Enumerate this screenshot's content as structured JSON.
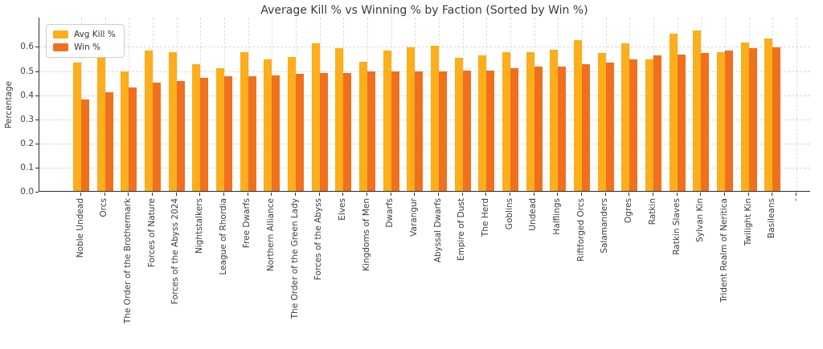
{
  "title": "Average Kill % vs Winning % by Faction (Sorted by Win %)",
  "ylabel": "Percentage",
  "yticks": [
    "0.0",
    "0.1",
    "0.2",
    "0.3",
    "0.4",
    "0.5",
    "0.6"
  ],
  "colors": {
    "avg_kill": "#FCAE1B",
    "win": "#F0701E"
  },
  "chart_data": {
    "type": "bar",
    "title": "Average Kill % vs Winning % by Faction (Sorted by Win %)",
    "xlabel": "",
    "ylabel": "Percentage",
    "ylim": [
      0,
      0.72
    ],
    "grid": true,
    "legend_position": "upper left",
    "categories": [
      "Noble Undead",
      "Orcs",
      "The Order of the Brothermark",
      "Forces of Nature",
      "Forces of the Abyss 2024",
      "Nightstalkers",
      "League of Rhordia",
      "Free Dwarfs",
      "Northern Alliance",
      "The Order of the Green Lady",
      "Forces of the Abyss",
      "Elves",
      "Kingdoms of Men",
      "Dwarfs",
      "Varangur",
      "Abyssal Dwarfs",
      "Empire of Dust",
      "The Herd",
      "Goblins",
      "Undead",
      "Halflings",
      "Riftforged Orcs",
      "Salamanders",
      "Ogres",
      "Ratkin",
      "Ratkin Slaves",
      "Sylvan Kin",
      "Trident Realm of Neritica",
      "Twilight Kin",
      "Basileans",
      "-"
    ],
    "series": [
      {
        "name": "Avg Kill %",
        "color": "#FCAE1B",
        "values": [
          0.53,
          0.55,
          0.495,
          0.58,
          0.575,
          0.525,
          0.51,
          0.575,
          0.545,
          0.555,
          0.61,
          0.59,
          0.535,
          0.58,
          0.595,
          0.6,
          0.55,
          0.56,
          0.575,
          0.575,
          0.585,
          0.625,
          0.57,
          0.61,
          0.545,
          0.65,
          0.665,
          0.575,
          0.615,
          0.63,
          null
        ]
      },
      {
        "name": "Win %",
        "color": "#F0701E",
        "values": [
          0.38,
          0.41,
          0.43,
          0.45,
          0.455,
          0.47,
          0.475,
          0.475,
          0.48,
          0.485,
          0.49,
          0.49,
          0.495,
          0.495,
          0.495,
          0.495,
          0.5,
          0.5,
          0.51,
          0.515,
          0.515,
          0.525,
          0.53,
          0.545,
          0.56,
          0.565,
          0.57,
          0.58,
          0.59,
          0.595,
          null
        ]
      }
    ]
  }
}
